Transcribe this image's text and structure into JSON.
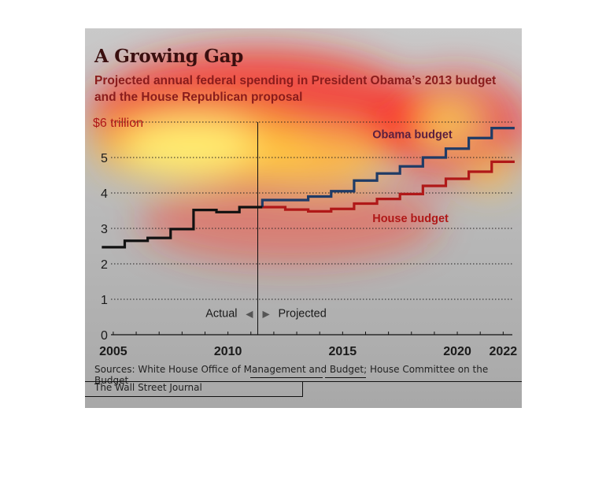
{
  "header": {
    "title": "A Growing Gap",
    "subtitle": "Projected annual federal spending in President Obama’s 2013 budget and the House Republican proposal"
  },
  "footer": {
    "sources": "Sources: White House Office of Management and Budget; House Committee on the Budget",
    "credit": "The Wall Street Journal"
  },
  "annotations": {
    "actual": "Actual",
    "projected": "Projected",
    "arrow_left": "◀",
    "arrow_right": "▶"
  },
  "colors": {
    "actual": "#111111",
    "obama": "#1f3b66",
    "house": "#b01818",
    "obama_label": "#5a1f3f",
    "house_label": "#b01818"
  },
  "chart_data": {
    "type": "line",
    "title": "A Growing Gap",
    "subtitle": "Projected annual federal spending in President Obama’s 2013 budget and the House Republican proposal",
    "xlabel": "",
    "ylabel": "",
    "xlim": [
      2004.9,
      2022.4
    ],
    "ylim": [
      0,
      6
    ],
    "x_ticks": [
      2005,
      2010,
      2015,
      2020,
      2022
    ],
    "y_ticks": [
      0,
      1,
      2,
      3,
      4,
      5,
      6
    ],
    "y_tick_labels": [
      "0",
      "1",
      "2",
      "3",
      "4",
      "5",
      "$6 trillion"
    ],
    "grid": true,
    "step": true,
    "projection_start": 2011,
    "series": [
      {
        "name": "Actual",
        "x": [
          2005,
          2006,
          2007,
          2008,
          2009,
          2010,
          2011
        ],
        "values": [
          2.47,
          2.65,
          2.73,
          2.98,
          3.52,
          3.46,
          3.6
        ]
      },
      {
        "name": "Obama budget",
        "x": [
          2012,
          2013,
          2014,
          2015,
          2016,
          2017,
          2018,
          2019,
          2020,
          2021,
          2022
        ],
        "values": [
          3.8,
          3.8,
          3.9,
          4.05,
          4.35,
          4.55,
          4.75,
          5.0,
          5.25,
          5.55,
          5.83
        ]
      },
      {
        "name": "House budget",
        "x": [
          2012,
          2013,
          2014,
          2015,
          2016,
          2017,
          2018,
          2019,
          2020,
          2021,
          2022
        ],
        "values": [
          3.6,
          3.53,
          3.48,
          3.55,
          3.7,
          3.83,
          3.97,
          4.2,
          4.4,
          4.6,
          4.88
        ]
      }
    ]
  }
}
